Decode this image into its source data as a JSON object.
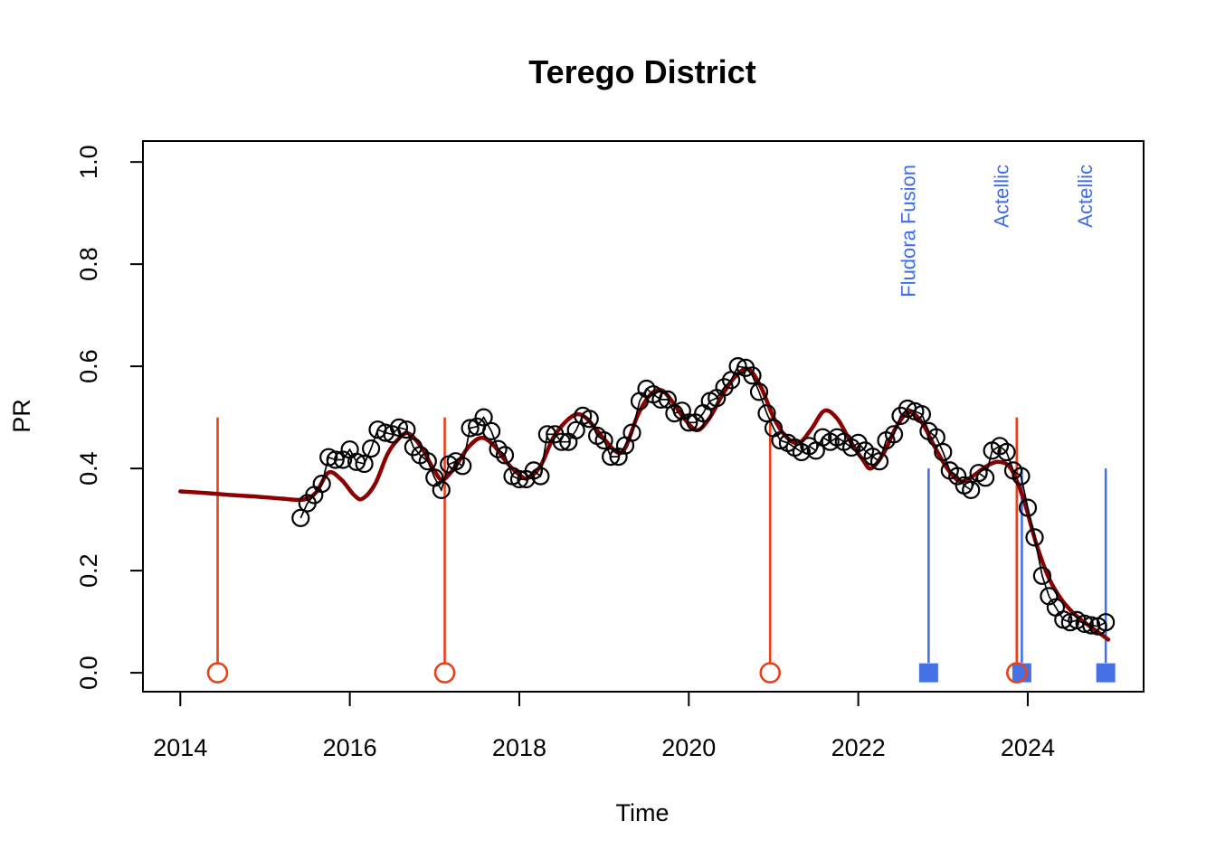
{
  "chart_data": {
    "type": "line",
    "title": "Terego District",
    "xlabel": "Time",
    "ylabel": "PR",
    "xlim": [
      2013.559,
      2025.367
    ],
    "ylim": [
      -0.037,
      1.041
    ],
    "x_ticks": [
      2014,
      2016,
      2018,
      2020,
      2022,
      2024
    ],
    "y_ticks": [
      0.0,
      0.2,
      0.4,
      0.6,
      0.8,
      1.0
    ],
    "grid": false,
    "legend_position": "none",
    "colors": {
      "observed": "#000000",
      "trend": "#8b0000",
      "event_red": "#e8421d",
      "event_blue": "#4472e6",
      "event_label": "#3e6de8",
      "axis": "#000000",
      "background": "#ffffff"
    },
    "series": [
      {
        "name": "observed_pr",
        "style": "open-circles-with-line",
        "points": [
          [
            2015.42,
            0.303
          ],
          [
            2015.5,
            0.332
          ],
          [
            2015.58,
            0.348
          ],
          [
            2015.67,
            0.37
          ],
          [
            2015.75,
            0.422
          ],
          [
            2015.83,
            0.417
          ],
          [
            2015.92,
            0.417
          ],
          [
            2016.0,
            0.437
          ],
          [
            2016.08,
            0.413
          ],
          [
            2016.17,
            0.409
          ],
          [
            2016.25,
            0.439
          ],
          [
            2016.33,
            0.476
          ],
          [
            2016.42,
            0.47
          ],
          [
            2016.5,
            0.467
          ],
          [
            2016.58,
            0.48
          ],
          [
            2016.67,
            0.476
          ],
          [
            2016.75,
            0.442
          ],
          [
            2016.83,
            0.426
          ],
          [
            2016.92,
            0.414
          ],
          [
            2017.0,
            0.382
          ],
          [
            2017.08,
            0.358
          ],
          [
            2017.17,
            0.408
          ],
          [
            2017.25,
            0.414
          ],
          [
            2017.33,
            0.405
          ],
          [
            2017.42,
            0.479
          ],
          [
            2017.5,
            0.482
          ],
          [
            2017.58,
            0.5
          ],
          [
            2017.67,
            0.473
          ],
          [
            2017.75,
            0.438
          ],
          [
            2017.83,
            0.426
          ],
          [
            2017.92,
            0.385
          ],
          [
            2018.0,
            0.379
          ],
          [
            2018.08,
            0.379
          ],
          [
            2018.17,
            0.396
          ],
          [
            2018.25,
            0.385
          ],
          [
            2018.33,
            0.467
          ],
          [
            2018.42,
            0.467
          ],
          [
            2018.5,
            0.452
          ],
          [
            2018.58,
            0.452
          ],
          [
            2018.67,
            0.475
          ],
          [
            2018.75,
            0.503
          ],
          [
            2018.83,
            0.497
          ],
          [
            2018.92,
            0.464
          ],
          [
            2019.0,
            0.455
          ],
          [
            2019.08,
            0.423
          ],
          [
            2019.17,
            0.423
          ],
          [
            2019.25,
            0.445
          ],
          [
            2019.33,
            0.47
          ],
          [
            2019.42,
            0.532
          ],
          [
            2019.5,
            0.556
          ],
          [
            2019.58,
            0.545
          ],
          [
            2019.67,
            0.535
          ],
          [
            2019.75,
            0.535
          ],
          [
            2019.83,
            0.508
          ],
          [
            2019.92,
            0.513
          ],
          [
            2020.0,
            0.49
          ],
          [
            2020.08,
            0.49
          ],
          [
            2020.17,
            0.508
          ],
          [
            2020.25,
            0.532
          ],
          [
            2020.33,
            0.538
          ],
          [
            2020.42,
            0.559
          ],
          [
            2020.5,
            0.573
          ],
          [
            2020.58,
            0.6
          ],
          [
            2020.67,
            0.597
          ],
          [
            2020.75,
            0.582
          ],
          [
            2020.83,
            0.55
          ],
          [
            2020.92,
            0.508
          ],
          [
            2021.0,
            0.479
          ],
          [
            2021.08,
            0.455
          ],
          [
            2021.17,
            0.45
          ],
          [
            2021.25,
            0.441
          ],
          [
            2021.33,
            0.432
          ],
          [
            2021.42,
            0.444
          ],
          [
            2021.5,
            0.435
          ],
          [
            2021.58,
            0.461
          ],
          [
            2021.67,
            0.452
          ],
          [
            2021.75,
            0.461
          ],
          [
            2021.83,
            0.452
          ],
          [
            2021.92,
            0.441
          ],
          [
            2022.0,
            0.45
          ],
          [
            2022.08,
            0.435
          ],
          [
            2022.17,
            0.423
          ],
          [
            2022.25,
            0.414
          ],
          [
            2022.33,
            0.455
          ],
          [
            2022.42,
            0.467
          ],
          [
            2022.5,
            0.503
          ],
          [
            2022.58,
            0.517
          ],
          [
            2022.67,
            0.512
          ],
          [
            2022.75,
            0.506
          ],
          [
            2022.83,
            0.473
          ],
          [
            2022.92,
            0.461
          ],
          [
            2023.0,
            0.432
          ],
          [
            2023.08,
            0.396
          ],
          [
            2023.17,
            0.385
          ],
          [
            2023.25,
            0.367
          ],
          [
            2023.33,
            0.358
          ],
          [
            2023.42,
            0.391
          ],
          [
            2023.5,
            0.382
          ],
          [
            2023.58,
            0.435
          ],
          [
            2023.67,
            0.444
          ],
          [
            2023.75,
            0.432
          ],
          [
            2023.83,
            0.396
          ],
          [
            2023.92,
            0.385
          ],
          [
            2024.0,
            0.323
          ],
          [
            2024.08,
            0.265
          ],
          [
            2024.17,
            0.19
          ],
          [
            2024.25,
            0.15
          ],
          [
            2024.33,
            0.128
          ],
          [
            2024.42,
            0.104
          ],
          [
            2024.5,
            0.099
          ],
          [
            2024.58,
            0.103
          ],
          [
            2024.67,
            0.096
          ],
          [
            2024.75,
            0.093
          ],
          [
            2024.83,
            0.091
          ],
          [
            2024.92,
            0.099
          ]
        ]
      },
      {
        "name": "fitted_trend",
        "style": "smooth-line",
        "points": [
          [
            2014.0,
            0.355
          ],
          [
            2014.3,
            0.352
          ],
          [
            2014.6,
            0.348
          ],
          [
            2014.9,
            0.345
          ],
          [
            2015.2,
            0.341
          ],
          [
            2015.45,
            0.339
          ],
          [
            2015.6,
            0.353
          ],
          [
            2015.75,
            0.392
          ],
          [
            2015.9,
            0.378
          ],
          [
            2016.05,
            0.348
          ],
          [
            2016.15,
            0.341
          ],
          [
            2016.3,
            0.37
          ],
          [
            2016.45,
            0.43
          ],
          [
            2016.6,
            0.462
          ],
          [
            2016.7,
            0.468
          ],
          [
            2016.85,
            0.44
          ],
          [
            2017.0,
            0.395
          ],
          [
            2017.1,
            0.378
          ],
          [
            2017.25,
            0.405
          ],
          [
            2017.4,
            0.442
          ],
          [
            2017.55,
            0.46
          ],
          [
            2017.7,
            0.445
          ],
          [
            2017.85,
            0.412
          ],
          [
            2018.0,
            0.388
          ],
          [
            2018.1,
            0.381
          ],
          [
            2018.25,
            0.405
          ],
          [
            2018.4,
            0.46
          ],
          [
            2018.55,
            0.492
          ],
          [
            2018.68,
            0.506
          ],
          [
            2018.8,
            0.497
          ],
          [
            2019.0,
            0.458
          ],
          [
            2019.15,
            0.432
          ],
          [
            2019.25,
            0.44
          ],
          [
            2019.4,
            0.505
          ],
          [
            2019.55,
            0.545
          ],
          [
            2019.68,
            0.553
          ],
          [
            2019.8,
            0.532
          ],
          [
            2019.95,
            0.497
          ],
          [
            2020.1,
            0.475
          ],
          [
            2020.25,
            0.5
          ],
          [
            2020.4,
            0.545
          ],
          [
            2020.55,
            0.58
          ],
          [
            2020.7,
            0.595
          ],
          [
            2020.85,
            0.56
          ],
          [
            2021.0,
            0.5
          ],
          [
            2021.15,
            0.462
          ],
          [
            2021.3,
            0.45
          ],
          [
            2021.45,
            0.478
          ],
          [
            2021.6,
            0.513
          ],
          [
            2021.75,
            0.498
          ],
          [
            2021.9,
            0.455
          ],
          [
            2022.05,
            0.418
          ],
          [
            2022.15,
            0.4
          ],
          [
            2022.3,
            0.43
          ],
          [
            2022.45,
            0.482
          ],
          [
            2022.6,
            0.51
          ],
          [
            2022.75,
            0.49
          ],
          [
            2022.9,
            0.443
          ],
          [
            2023.05,
            0.4
          ],
          [
            2023.2,
            0.375
          ],
          [
            2023.35,
            0.385
          ],
          [
            2023.5,
            0.403
          ],
          [
            2023.65,
            0.413
          ],
          [
            2023.8,
            0.4
          ],
          [
            2023.95,
            0.34
          ],
          [
            2024.1,
            0.253
          ],
          [
            2024.25,
            0.185
          ],
          [
            2024.4,
            0.143
          ],
          [
            2024.55,
            0.115
          ],
          [
            2024.7,
            0.095
          ],
          [
            2024.85,
            0.077
          ],
          [
            2024.95,
            0.065
          ]
        ]
      }
    ],
    "events": {
      "unlabeled_red": {
        "marker": "open-circle",
        "line_top": 0.5,
        "marker_value": 0.0,
        "years": [
          2014.44,
          2017.12,
          2020.96,
          2023.87
        ]
      },
      "labeled_blue": {
        "marker": "filled-square",
        "line_top": 0.4,
        "marker_value": 0.0,
        "items": [
          {
            "year": 2022.83,
            "label": "Fludora Fusion"
          },
          {
            "year": 2023.93,
            "label": "Actellic"
          },
          {
            "year": 2024.92,
            "label": "Actellic"
          }
        ]
      }
    }
  }
}
